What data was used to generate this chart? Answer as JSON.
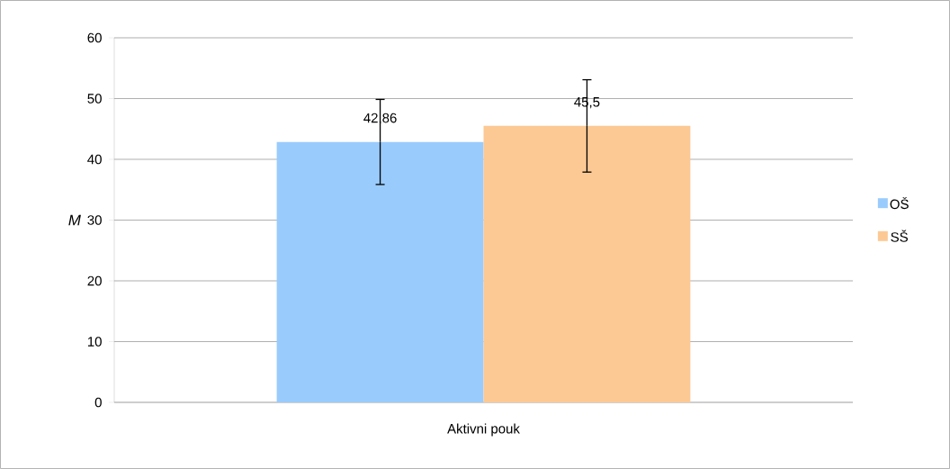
{
  "chart_data": {
    "type": "bar",
    "ylabel": "M",
    "categories": [
      "Aktivni pouk"
    ],
    "series": [
      {
        "name": "OŠ",
        "color": "#99cbfd",
        "values": [
          42.86
        ],
        "errors": [
          7
        ],
        "value_labels": [
          "42,86"
        ]
      },
      {
        "name": "SŠ",
        "color": "#fcc994",
        "values": [
          45.5
        ],
        "errors": [
          7.6
        ],
        "value_labels": [
          "45,5"
        ]
      }
    ],
    "ylim": [
      0,
      60
    ],
    "yticks": [
      0,
      10,
      20,
      30,
      40,
      50,
      60
    ],
    "grid": "y",
    "legend": "right"
  }
}
